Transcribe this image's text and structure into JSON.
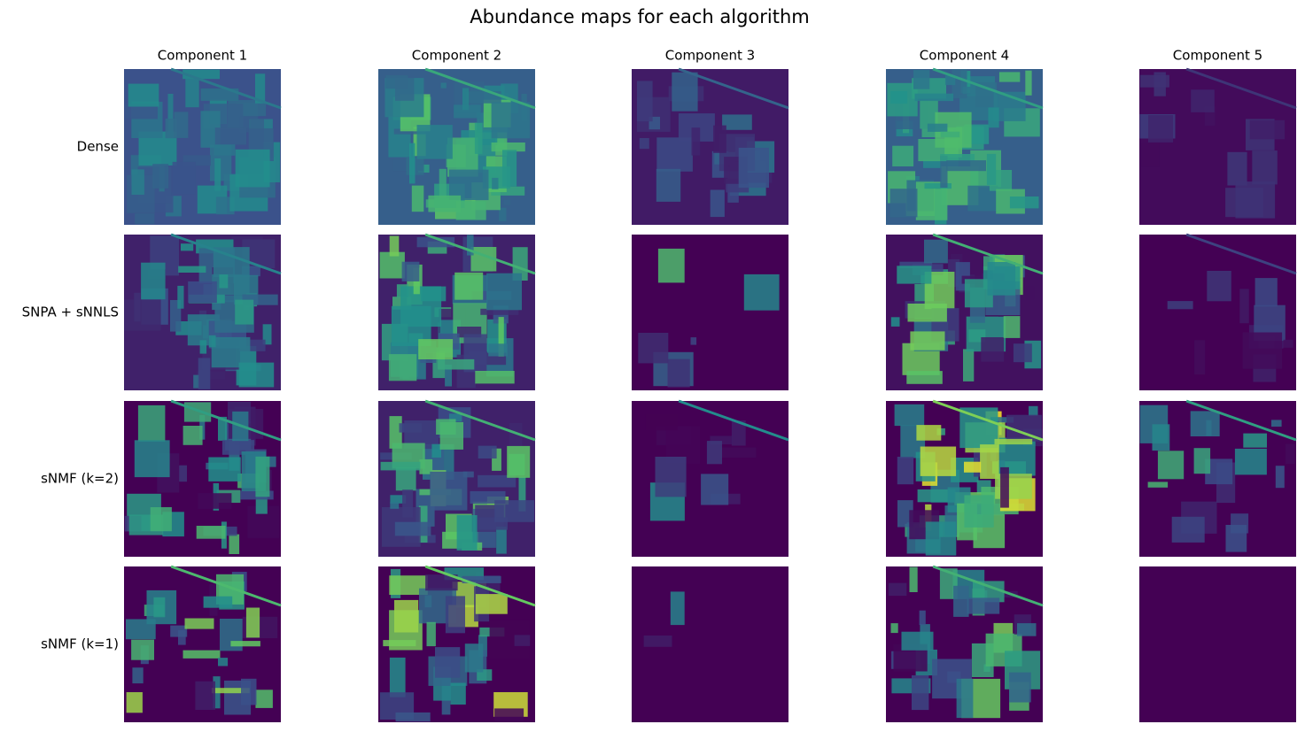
{
  "header": {
    "title": "Abundance maps for each algorithm"
  },
  "columns": [
    "Component 1",
    "Component 2",
    "Component 3",
    "Component 4",
    "Component 5"
  ],
  "rows": [
    "Dense",
    "SNPA + sNNLS",
    "sNMF (k=2)",
    "sNMF (k=1)"
  ]
}
